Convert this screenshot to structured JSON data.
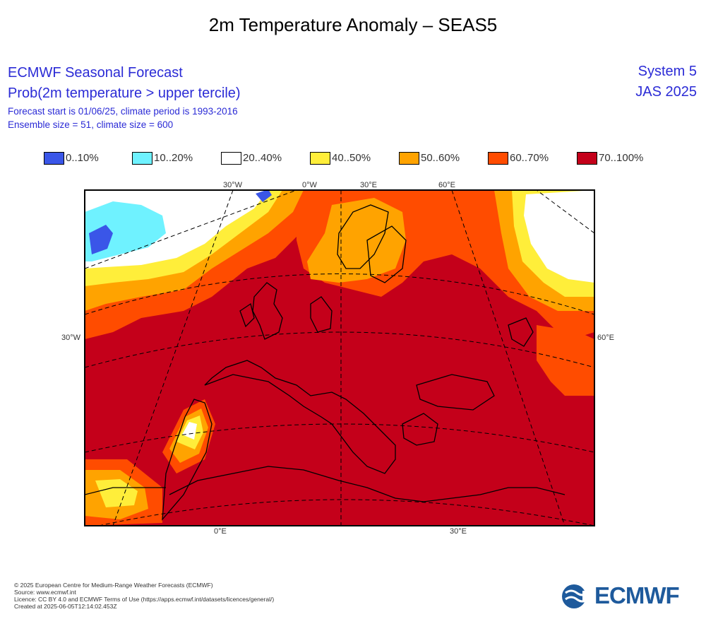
{
  "title": "2m Temperature Anomaly – SEAS5",
  "header": {
    "org": "ECMWF Seasonal Forecast",
    "variable": "Prob(2m temperature > upper tercile)",
    "forecast_line": "Forecast start is 01/06/25, climate period is 1993-2016",
    "ensemble_line": "Ensemble size = 51, climate size = 600",
    "system": "System 5",
    "period": "JAS 2025"
  },
  "legend": [
    {
      "label": "0..10%",
      "color": "#3a56e8"
    },
    {
      "label": "10..20%",
      "color": "#6ff2ff"
    },
    {
      "label": "20..40%",
      "color": "#ffffff"
    },
    {
      "label": "40..50%",
      "color": "#ffee3a"
    },
    {
      "label": "50..60%",
      "color": "#ffa300"
    },
    {
      "label": "60..70%",
      "color": "#ff4c00"
    },
    {
      "label": "70..100%",
      "color": "#c4001a"
    }
  ],
  "map": {
    "labels_top": [
      "30°W",
      "0°W",
      "30°E",
      "60°E"
    ],
    "labels_bottom": [
      "0°E",
      "30°E"
    ],
    "label_left": "30°W",
    "label_right": "60°E",
    "region": "Europe / North Atlantic"
  },
  "footer": {
    "copyright": "© 2025 European Centre for Medium-Range Weather Forecasts (ECMWF)",
    "source": "Source: www.ecmwf.int",
    "licence": "Licence: CC BY 4.0 and ECMWF Terms of Use (https://apps.ecmwf.int/datasets/licences/general/)",
    "created": "Created at 2025-06-05T12:14:02.453Z"
  },
  "logo_text": "ECMWF"
}
